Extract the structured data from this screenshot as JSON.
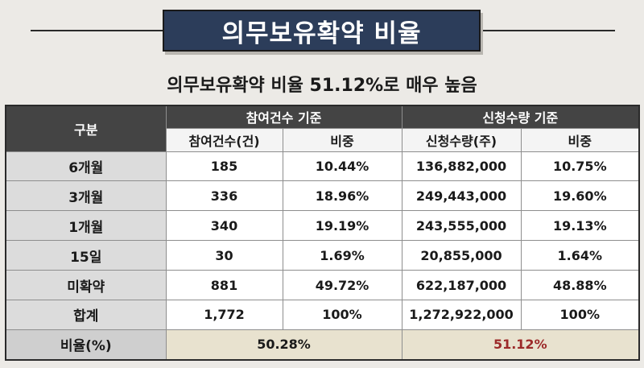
{
  "title": "의무보유확약 비율",
  "subtitle": "의무보유확약 비율 51.12%로 매우 높음",
  "table": {
    "corner": "구분",
    "groups": [
      "참여건수 기준",
      "신청수량 기준"
    ],
    "subheaders": [
      "참여건수(건)",
      "비중",
      "신청수량(주)",
      "비중"
    ],
    "rows": [
      {
        "label": "6개월",
        "cells": [
          "185",
          "10.44%",
          "136,882,000",
          "10.75%"
        ]
      },
      {
        "label": "3개월",
        "cells": [
          "336",
          "18.96%",
          "249,443,000",
          "19.60%"
        ]
      },
      {
        "label": "1개월",
        "cells": [
          "340",
          "19.19%",
          "243,555,000",
          "19.13%"
        ]
      },
      {
        "label": "15일",
        "cells": [
          "30",
          "1.69%",
          "20,855,000",
          "1.64%"
        ]
      },
      {
        "label": "미확약",
        "cells": [
          "881",
          "49.72%",
          "622,187,000",
          "48.88%"
        ]
      },
      {
        "label": "합계",
        "cells": [
          "1,772",
          "100%",
          "1,272,922,000",
          "100%"
        ]
      }
    ],
    "ratio_label": "비율(%)",
    "ratio_values": [
      "50.28%",
      "51.12%"
    ],
    "ratio_highlight_color": "#9c2a2a"
  }
}
